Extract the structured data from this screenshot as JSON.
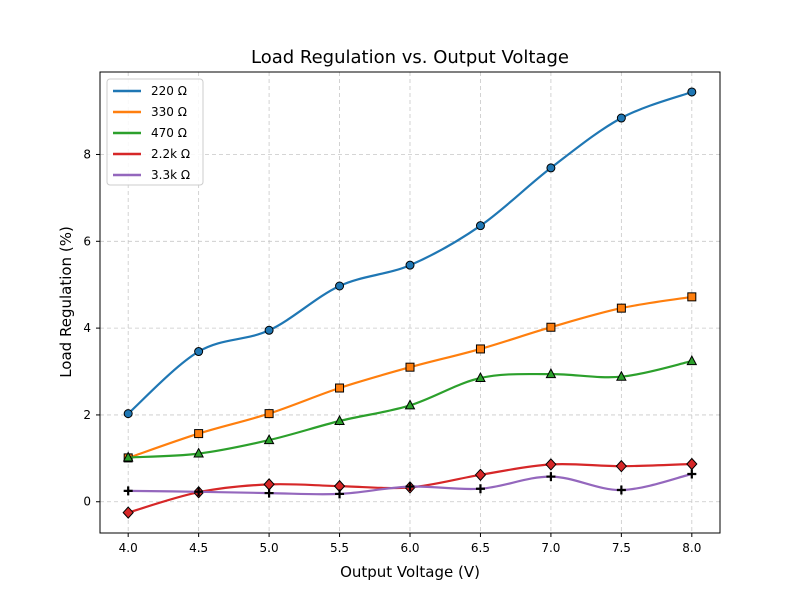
{
  "chart_data": {
    "type": "line",
    "title": "Load Regulation vs. Output Voltage",
    "xlabel": "Output Voltage (V)",
    "ylabel": "Load Regulation (%)",
    "x": [
      4.0,
      4.5,
      5.0,
      5.5,
      6.0,
      6.5,
      7.0,
      7.5,
      8.0
    ],
    "xticks": [
      "4.0",
      "4.5",
      "5.0",
      "5.5",
      "6.0",
      "6.5",
      "7.0",
      "7.5",
      "8.0"
    ],
    "yticks": [
      "0",
      "2",
      "4",
      "6",
      "8"
    ],
    "xlim": [
      3.8,
      8.2
    ],
    "ylim": [
      -0.72,
      9.9
    ],
    "grid": true,
    "legend_position": "top-left",
    "series": [
      {
        "name": "220 Ω",
        "color": "#1f77b4",
        "marker": "circle",
        "values": [
          2.03,
          3.46,
          3.95,
          4.97,
          5.45,
          6.36,
          7.69,
          8.84,
          9.44
        ]
      },
      {
        "name": "330 Ω",
        "color": "#ff7f0e",
        "marker": "square",
        "values": [
          1.01,
          1.57,
          2.03,
          2.62,
          3.1,
          3.52,
          4.02,
          4.46,
          4.72
        ]
      },
      {
        "name": "470 Ω",
        "color": "#2ca02c",
        "marker": "triangle",
        "values": [
          1.02,
          1.11,
          1.42,
          1.86,
          2.22,
          2.85,
          2.94,
          2.88,
          3.24
        ]
      },
      {
        "name": "2.2k Ω",
        "color": "#d62728",
        "marker": "diamond",
        "values": [
          -0.25,
          0.22,
          0.4,
          0.36,
          0.33,
          0.62,
          0.86,
          0.82,
          0.87
        ]
      },
      {
        "name": "3.3k Ω",
        "color": "#9467bd",
        "marker": "plus",
        "values": [
          0.25,
          0.23,
          0.2,
          0.18,
          0.35,
          0.3,
          0.58,
          0.27,
          0.64
        ]
      }
    ]
  }
}
